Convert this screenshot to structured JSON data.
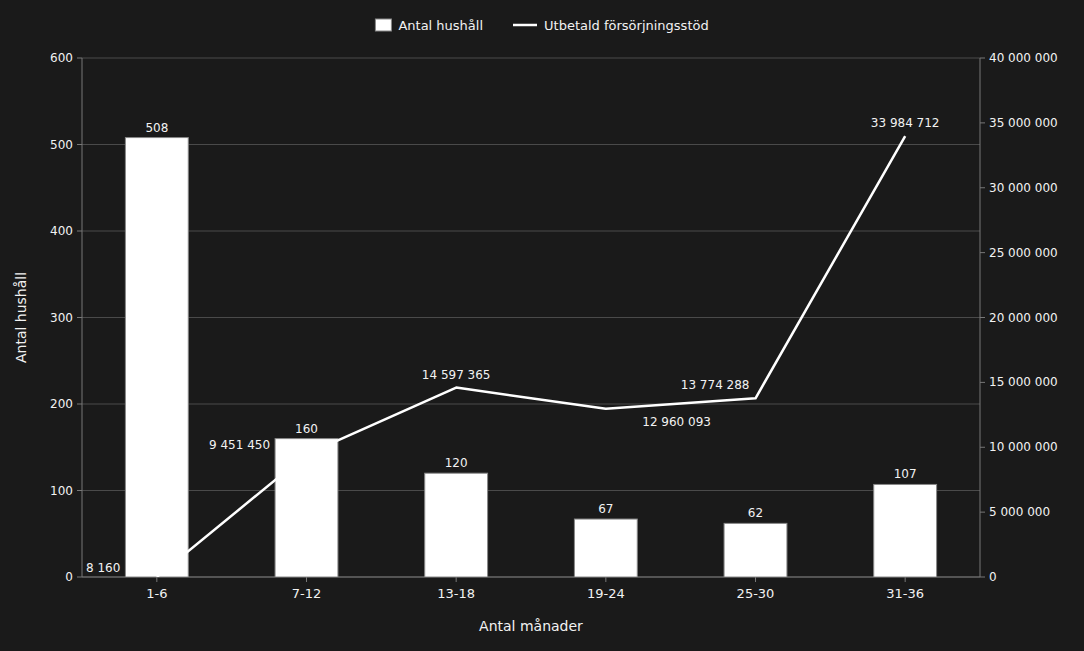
{
  "chart_data": {
    "type": "bar",
    "categories": [
      "1-6",
      "7-12",
      "13-18",
      "19-24",
      "25-30",
      "31-36"
    ],
    "series": [
      {
        "name": "Antal hushåll",
        "type": "bar",
        "color": "white",
        "values": [
          508,
          160,
          120,
          67,
          62,
          107
        ]
      },
      {
        "name": "Utbetald försörjningsstöd",
        "type": "line",
        "axis": "y2",
        "color": "white",
        "values": [
          8160,
          9451450,
          14597365,
          12960093,
          13774288,
          33984712
        ],
        "value_labels": [
          "8 160",
          "9 451 450",
          "14 597 365",
          "12 960 093",
          "13 774 288",
          "33 984 712"
        ]
      }
    ],
    "xlabel": "Antal månader",
    "ylabel": "Antal hushåll",
    "ylim": [
      0,
      600
    ],
    "yticks": [
      0,
      100,
      200,
      300,
      400,
      500,
      600
    ],
    "y2lim": [
      0,
      40000000
    ],
    "y2ticks": [
      0,
      {
        "value": 5000000,
        "label": "5 000 000"
      },
      {
        "value": 10000000,
        "label": "10 000 000"
      },
      {
        "value": 15000000,
        "label": "15 000 000"
      },
      {
        "value": 20000000,
        "label": "20 000 000"
      },
      {
        "value": 25000000,
        "label": "25 000 000"
      },
      {
        "value": 30000000,
        "label": "30 000 000"
      },
      {
        "value": 35000000,
        "label": "35 000 000"
      },
      {
        "value": 40000000,
        "label": "40 000 000"
      }
    ],
    "grid": true,
    "legend": "top",
    "data_labels": true
  }
}
